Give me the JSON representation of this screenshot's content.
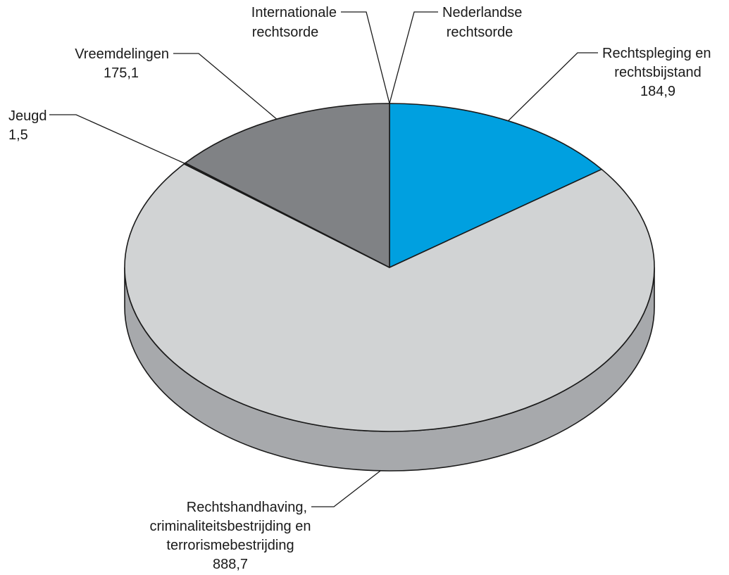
{
  "chart_data": {
    "type": "pie",
    "style": "3d",
    "unit": "",
    "slices": [
      {
        "key": "rechtspleging",
        "label_lines": [
          "Rechtspleging en",
          "rechtsbijstand"
        ],
        "value_text": "184,9",
        "value": 184.9,
        "color": "#00a0e0"
      },
      {
        "key": "rechtshandhaving",
        "label_lines": [
          "Rechtshandhaving,",
          "criminaliteitsbestrijding en",
          "terrorismebestrijding"
        ],
        "value_text": "888,7",
        "value": 888.7,
        "color": "#d1d3d4"
      },
      {
        "key": "jeugd",
        "label_lines": [
          "Jeugd"
        ],
        "value_text": "1,5",
        "value": 1.5,
        "color": "#3c3c3c"
      },
      {
        "key": "vreemdelingen",
        "label_lines": [
          "Vreemdelingen"
        ],
        "value_text": "175,1",
        "value": 175.1,
        "color": "#808285"
      },
      {
        "key": "internationale",
        "label_lines": [
          "Internationale",
          "rechtsorde"
        ],
        "value_text": "",
        "value": 0,
        "color": "#808285"
      },
      {
        "key": "nederlandse",
        "label_lines": [
          "Nederlandse",
          "rechtsorde"
        ],
        "value_text": "",
        "value": 0,
        "color": "#00a0e0"
      }
    ],
    "side_color": "#a7a9ac"
  }
}
